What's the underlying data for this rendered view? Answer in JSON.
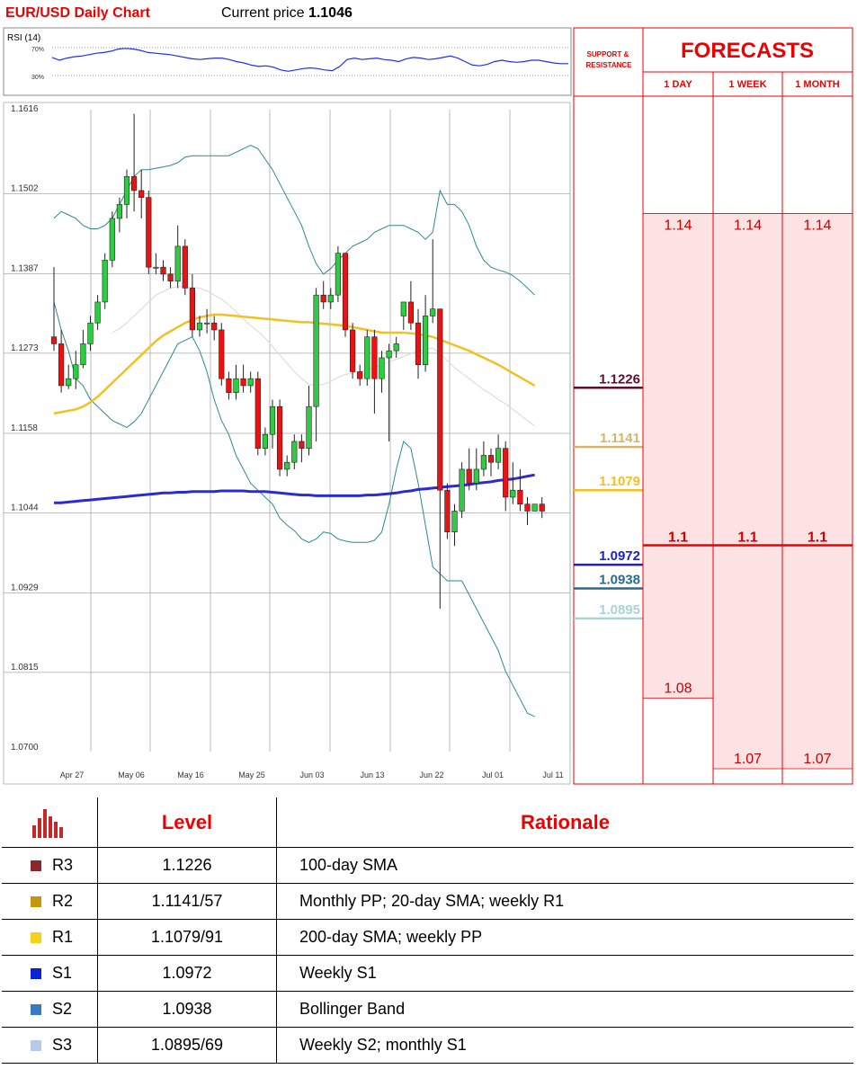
{
  "header": {
    "title": "EUR/USD Daily Chart",
    "price_label": "Current price",
    "price_value": "1.1046"
  },
  "rsi": {
    "label": "RSI (14)",
    "upper_label": "70%",
    "lower_label": "30%",
    "values": [
      56,
      52,
      55,
      57,
      58,
      60,
      62,
      63,
      65,
      68,
      69,
      68,
      66,
      63,
      62,
      61,
      60,
      58,
      56,
      54,
      53,
      54,
      55,
      55,
      53,
      50,
      48,
      45,
      43,
      44,
      42,
      38,
      36,
      38,
      40,
      41,
      40,
      38,
      37,
      43,
      53,
      55,
      53,
      54,
      55,
      53,
      52,
      50,
      54,
      56,
      55,
      53,
      54,
      56,
      58,
      55,
      50,
      45,
      44,
      46,
      50,
      52,
      50,
      49,
      50,
      52,
      52,
      50,
      48,
      47,
      47
    ],
    "color": "#1f2ef2"
  },
  "chart_data": {
    "type": "candlestick",
    "title": "EUR/USD Daily Chart",
    "ylim": [
      1.07,
      1.1616
    ],
    "y_ticks": [
      "1.1616",
      "1.1502",
      "1.1387",
      "1.1273",
      "1.1158",
      "1.1044",
      "1.0929",
      "1.0815",
      "1.0700"
    ],
    "x_ticks": [
      "Apr 27",
      "May 06",
      "May 16",
      "May 25",
      "Jun 03",
      "Jun 13",
      "Jun 22",
      "Jul 01",
      "Jul 11"
    ],
    "candles": [
      [
        1.129,
        1.128,
        1.139,
        1.127
      ],
      [
        1.128,
        1.122,
        1.13,
        1.121
      ],
      [
        1.122,
        1.123,
        1.125,
        1.1215
      ],
      [
        1.123,
        1.125,
        1.127,
        1.1215
      ],
      [
        1.125,
        1.128,
        1.13,
        1.1245
      ],
      [
        1.128,
        1.131,
        1.132,
        1.127
      ],
      [
        1.131,
        1.134,
        1.135,
        1.13
      ],
      [
        1.134,
        1.14,
        1.141,
        1.133
      ],
      [
        1.14,
        1.146,
        1.147,
        1.139
      ],
      [
        1.146,
        1.148,
        1.149,
        1.144
      ],
      [
        1.148,
        1.152,
        1.153,
        1.146
      ],
      [
        1.152,
        1.15,
        1.161,
        1.147
      ],
      [
        1.15,
        1.149,
        1.153,
        1.146
      ],
      [
        1.149,
        1.139,
        1.15,
        1.138
      ],
      [
        1.139,
        1.139,
        1.141,
        1.138
      ],
      [
        1.139,
        1.138,
        1.14,
        1.137
      ],
      [
        1.138,
        1.137,
        1.139,
        1.136
      ],
      [
        1.137,
        1.142,
        1.145,
        1.136
      ],
      [
        1.142,
        1.136,
        1.143,
        1.135
      ],
      [
        1.136,
        1.13,
        1.138,
        1.129
      ],
      [
        1.13,
        1.131,
        1.132,
        1.129
      ],
      [
        1.131,
        1.131,
        1.133,
        1.1295
      ],
      [
        1.131,
        1.13,
        1.132,
        1.1285
      ],
      [
        1.13,
        1.123,
        1.131,
        1.122
      ],
      [
        1.123,
        1.121,
        1.124,
        1.12
      ],
      [
        1.121,
        1.123,
        1.125,
        1.12
      ],
      [
        1.123,
        1.122,
        1.125,
        1.121
      ],
      [
        1.122,
        1.123,
        1.124,
        1.121
      ],
      [
        1.123,
        1.113,
        1.124,
        1.112
      ],
      [
        1.113,
        1.115,
        1.116,
        1.112
      ],
      [
        1.115,
        1.119,
        1.12,
        1.113
      ],
      [
        1.119,
        1.11,
        1.12,
        1.109
      ],
      [
        1.11,
        1.111,
        1.112,
        1.109
      ],
      [
        1.111,
        1.114,
        1.115,
        1.11
      ],
      [
        1.114,
        1.113,
        1.115,
        1.111
      ],
      [
        1.113,
        1.119,
        1.122,
        1.112
      ],
      [
        1.119,
        1.135,
        1.136,
        1.114
      ],
      [
        1.135,
        1.134,
        1.137,
        1.133
      ],
      [
        1.134,
        1.135,
        1.136,
        1.133
      ],
      [
        1.135,
        1.141,
        1.142,
        1.134
      ],
      [
        1.141,
        1.13,
        1.141,
        1.129
      ],
      [
        1.13,
        1.124,
        1.131,
        1.123
      ],
      [
        1.124,
        1.123,
        1.125,
        1.122
      ],
      [
        1.123,
        1.129,
        1.13,
        1.122
      ],
      [
        1.129,
        1.123,
        1.13,
        1.118
      ],
      [
        1.123,
        1.126,
        1.127,
        1.121
      ],
      [
        1.126,
        1.127,
        1.128,
        1.114
      ],
      [
        1.127,
        1.128,
        1.129,
        1.126
      ],
      [
        1.132,
        1.134,
        1.134,
        1.13
      ],
      [
        1.134,
        1.131,
        1.137,
        1.13
      ],
      [
        1.131,
        1.125,
        1.133,
        1.123
      ],
      [
        1.125,
        1.132,
        1.135,
        1.124
      ],
      [
        1.132,
        1.133,
        1.143,
        1.131
      ],
      [
        1.133,
        1.107,
        1.133,
        1.09
      ],
      [
        1.107,
        1.101,
        1.108,
        1.1
      ],
      [
        1.101,
        1.104,
        1.105,
        1.099
      ],
      [
        1.104,
        1.11,
        1.111,
        1.103
      ],
      [
        1.11,
        1.108,
        1.113,
        1.107
      ],
      [
        1.108,
        1.11,
        1.113,
        1.107
      ],
      [
        1.11,
        1.112,
        1.114,
        1.109
      ],
      [
        1.112,
        1.111,
        1.113,
        1.109
      ],
      [
        1.111,
        1.113,
        1.115,
        1.11
      ],
      [
        1.113,
        1.106,
        1.114,
        1.104
      ],
      [
        1.106,
        1.107,
        1.111,
        1.105
      ],
      [
        1.107,
        1.105,
        1.11,
        1.104
      ],
      [
        1.105,
        1.104,
        1.106,
        1.102
      ],
      [
        1.104,
        1.105,
        1.105,
        1.104
      ],
      [
        1.105,
        1.104,
        1.106,
        1.103
      ]
    ],
    "ma_200": {
      "name": "200-day SMA",
      "color": "#2b2bd6",
      "values": [
        1.1052,
        1.1052,
        1.1053,
        1.1054,
        1.1055,
        1.1056,
        1.1057,
        1.1058,
        1.1059,
        1.106,
        1.1061,
        1.1062,
        1.1063,
        1.1064,
        1.1065,
        1.1066,
        1.1066,
        1.1067,
        1.1067,
        1.1068,
        1.1068,
        1.1068,
        1.1068,
        1.1069,
        1.1069,
        1.1069,
        1.1069,
        1.1068,
        1.1068,
        1.1068,
        1.1067,
        1.1066,
        1.1065,
        1.1064,
        1.1063,
        1.1063,
        1.1062,
        1.1062,
        1.1062,
        1.1062,
        1.1062,
        1.1062,
        1.1062,
        1.1063,
        1.1063,
        1.1064,
        1.1065,
        1.1066,
        1.1068,
        1.1069,
        1.1071,
        1.1072,
        1.1073,
        1.1074,
        1.1075,
        1.1076,
        1.1077,
        1.1078,
        1.108,
        1.1081,
        1.1082,
        1.1084,
        1.1085,
        1.1086,
        1.1088,
        1.109,
        1.1092
      ]
    },
    "ma_100": {
      "name": "100-day SMA",
      "color": "#f2c020",
      "values": [
        1.118,
        1.1182,
        1.1184,
        1.1186,
        1.119,
        1.1196,
        1.1204,
        1.1214,
        1.1224,
        1.1234,
        1.1244,
        1.1254,
        1.1264,
        1.1274,
        1.1284,
        1.1292,
        1.1298,
        1.1304,
        1.131,
        1.1314,
        1.1318,
        1.132,
        1.1322,
        1.1322,
        1.1321,
        1.132,
        1.1319,
        1.1318,
        1.1317,
        1.1316,
        1.1315,
        1.1314,
        1.1313,
        1.1312,
        1.1311,
        1.1311,
        1.131,
        1.1309,
        1.1308,
        1.1307,
        1.1306,
        1.1304,
        1.1302,
        1.13,
        1.1298,
        1.1296,
        1.1296,
        1.1296,
        1.1296,
        1.1295,
        1.1294,
        1.1292,
        1.129,
        1.1286,
        1.1282,
        1.1278,
        1.1274,
        1.127,
        1.1265,
        1.126,
        1.1255,
        1.125,
        1.1244,
        1.1238,
        1.1232,
        1.1226,
        1.122
      ]
    },
    "ma_20": {
      "name": "20-day SMA",
      "color": "#d8d8d8",
      "values": [
        null,
        null,
        null,
        null,
        null,
        null,
        null,
        null,
        1.1296,
        1.1302,
        1.131,
        1.132,
        1.133,
        1.134,
        1.135,
        1.1355,
        1.136,
        1.1362,
        1.1362,
        1.1361,
        1.136,
        1.1356,
        1.135,
        1.1344,
        1.1336,
        1.1326,
        1.1316,
        1.1306,
        1.1298,
        1.1288,
        1.1276,
        1.1264,
        1.1252,
        1.124,
        1.123,
        1.1222,
        1.122,
        1.1222,
        1.1226,
        1.1232,
        1.1236,
        1.1238,
        1.124,
        1.1243,
        1.1246,
        1.125,
        1.1254,
        1.1258,
        1.1262,
        1.1266,
        1.127,
        1.1272,
        1.1274,
        1.1266,
        1.1256,
        1.1246,
        1.1238,
        1.123,
        1.1222,
        1.1214,
        1.1208,
        1.12,
        1.1194,
        1.1186,
        1.1178,
        1.117,
        1.1162
      ]
    },
    "boll_upper": {
      "name": "Bollinger Band",
      "color": "#2a8a92",
      "values": [
        1.146,
        1.147,
        1.1465,
        1.146,
        1.145,
        1.1445,
        1.1445,
        1.145,
        1.146,
        1.148,
        1.15,
        1.152,
        1.153,
        1.153,
        1.1532,
        1.1534,
        1.1536,
        1.154,
        1.1548,
        1.155,
        1.155,
        1.155,
        1.155,
        1.155,
        1.155,
        1.1555,
        1.156,
        1.1565,
        1.156,
        1.1545,
        1.153,
        1.151,
        1.149,
        1.147,
        1.145,
        1.142,
        1.1395,
        1.138,
        1.1388,
        1.14,
        1.141,
        1.142,
        1.1425,
        1.143,
        1.144,
        1.1445,
        1.145,
        1.145,
        1.145,
        1.1445,
        1.144,
        1.143,
        1.144,
        1.15,
        1.148,
        1.148,
        1.147,
        1.145,
        1.142,
        1.14,
        1.139,
        1.1386,
        1.1383,
        1.1378,
        1.137,
        1.136,
        1.135
      ]
    },
    "boll_lower": {
      "name": "Bollinger Band",
      "color": "#2a8a92",
      "values": [
        1.134,
        1.13,
        1.127,
        1.123,
        1.122,
        1.12,
        1.119,
        1.118,
        1.117,
        1.1165,
        1.116,
        1.1168,
        1.118,
        1.12,
        1.122,
        1.124,
        1.126,
        1.128,
        1.1285,
        1.129,
        1.127,
        1.124,
        1.12,
        1.117,
        1.115,
        1.112,
        1.11,
        1.108,
        1.107,
        1.106,
        1.105,
        1.103,
        1.102,
        1.1012,
        1.1,
        1.0995,
        1.1,
        1.101,
        1.1008,
        1.1,
        1.0997,
        1.0995,
        1.0995,
        1.0995,
        1.0998,
        1.101,
        1.105,
        1.11,
        1.114,
        1.113,
        1.108,
        1.102,
        1.096,
        1.095,
        1.094,
        1.094,
        1.094,
        1.092,
        1.09,
        1.088,
        1.086,
        1.084,
        1.081,
        1.079,
        1.077,
        1.075,
        1.0745
      ]
    }
  },
  "levels_panel": {
    "heading": "SUPPORT & RESISTANCE",
    "items": [
      {
        "value": "1.1226",
        "price": 1.1226,
        "color": "#5e0f2c",
        "text_color": "#5e0f2c"
      },
      {
        "value": "1.1141",
        "price": 1.1141,
        "color": "#d6b56a",
        "text_color": "#d6b56a"
      },
      {
        "value": "1.1079",
        "price": 1.1079,
        "color": "#f2c020",
        "text_color": "#f2c020"
      },
      {
        "value": "1.0972",
        "price": 1.0972,
        "color": "#1f1fc8",
        "text_color": "#1f1fc8"
      },
      {
        "value": "1.0938",
        "price": 1.0938,
        "color": "#2a6a8c",
        "text_color": "#2a6a8c"
      },
      {
        "value": "1.0895",
        "price": 1.0895,
        "color": "#a9d3d6",
        "text_color": "#a9d3d6"
      }
    ]
  },
  "forecasts": {
    "title": "FORECASTS",
    "columns": [
      {
        "label": "1 DAY",
        "high": "1.14",
        "high_v": 1.14,
        "mid": "1.1",
        "mid_v": 1.1,
        "low": "1.08",
        "low_v": 1.08
      },
      {
        "label": "1 WEEK",
        "high": "1.14",
        "high_v": 1.14,
        "mid": "1.1",
        "mid_v": 1.1,
        "low": "1.07",
        "low_v": 1.07
      },
      {
        "label": "1 MONTH",
        "high": "1.14",
        "high_v": 1.14,
        "mid": "1.1",
        "mid_v": 1.1,
        "low": "1.07",
        "low_v": 1.07
      }
    ]
  },
  "table": {
    "head_level": "Level",
    "head_rationale": "Rationale",
    "rows": [
      {
        "name": "R3",
        "level": "1.1226",
        "rationale": "100-day SMA",
        "color": "#8b2a2a"
      },
      {
        "name": "R2",
        "level": "1.1141/57",
        "rationale": "Monthly PP; 20-day SMA; weekly R1",
        "color": "#c8960a"
      },
      {
        "name": "R1",
        "level": "1.1079/91",
        "rationale": "200-day SMA; weekly PP",
        "color": "#f7d11c"
      },
      {
        "name": "S1",
        "level": "1.0972",
        "rationale": "Weekly S1",
        "color": "#0a22d6"
      },
      {
        "name": "S2",
        "level": "1.0938",
        "rationale": "Bollinger Band",
        "color": "#3a7ac0"
      },
      {
        "name": "S3",
        "level": "1.0895/69",
        "rationale": "Weekly S2; monthly S1",
        "color": "#b6c9e6"
      }
    ]
  }
}
